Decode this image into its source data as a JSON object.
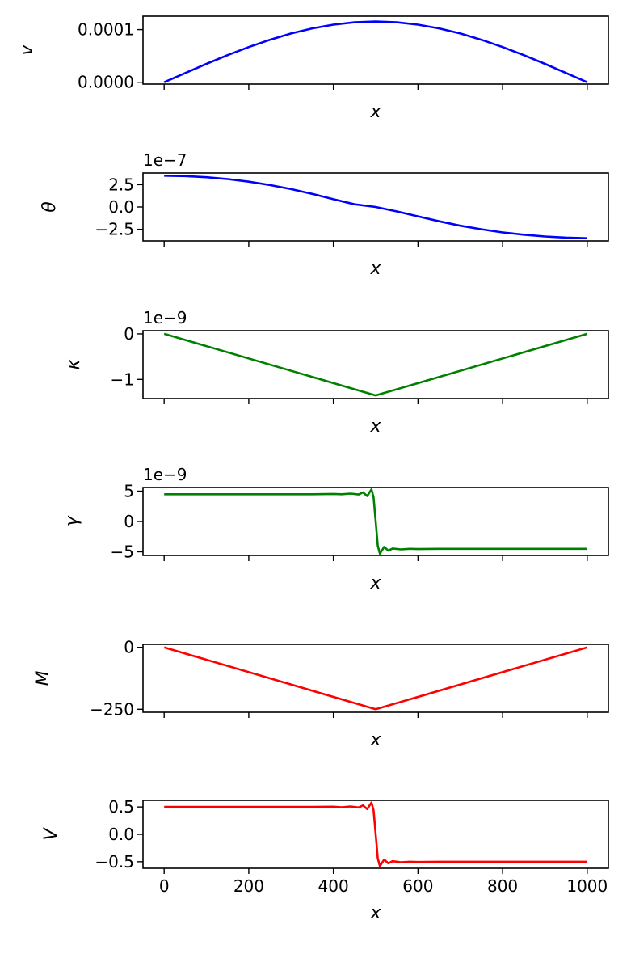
{
  "chart_data": [
    {
      "type": "line",
      "ylabel": "v",
      "xlabel": "x",
      "offset_text": "",
      "xlim": [
        -50,
        1050
      ],
      "ylim": [
        -3.5e-06,
        0.0001255
      ],
      "yticks": [
        0,
        0.0001
      ],
      "ytick_labels": [
        "0.0000",
        "0.0001"
      ],
      "xticks": [
        0,
        200,
        400,
        600,
        800,
        1000
      ],
      "xtick_labels": [],
      "color": "#0000ff",
      "x": [
        0,
        50,
        100,
        150,
        200,
        250,
        300,
        350,
        400,
        450,
        500,
        550,
        600,
        650,
        700,
        750,
        800,
        850,
        900,
        950,
        1000
      ],
      "y": [
        0,
        1.76e-05,
        3.49e-05,
        5.15e-05,
        6.69e-05,
        8.07e-05,
        9.26e-05,
        0.0001023,
        0.0001094,
        0.0001138,
        0.0001153,
        0.0001138,
        0.0001094,
        0.0001023,
        9.26e-05,
        8.07e-05,
        6.69e-05,
        5.15e-05,
        3.49e-05,
        1.76e-05,
        0
      ]
    },
    {
      "type": "line",
      "ylabel": "θ",
      "xlabel": "x",
      "offset_text": "1e−7",
      "xlim": [
        -50,
        1050
      ],
      "ylim": [
        -3.8,
        3.8
      ],
      "yticks": [
        2.5,
        0,
        -2.5
      ],
      "ytick_labels": [
        "2.5",
        "0.0",
        "−2.5"
      ],
      "xticks": [
        0,
        200,
        400,
        600,
        800,
        1000
      ],
      "xtick_labels": [],
      "color": "#0000ff",
      "x": [
        0,
        50,
        100,
        150,
        200,
        250,
        300,
        350,
        400,
        450,
        500,
        550,
        600,
        650,
        700,
        750,
        800,
        850,
        900,
        950,
        1000
      ],
      "y": [
        3.5,
        3.46,
        3.33,
        3.12,
        2.83,
        2.45,
        2.0,
        1.47,
        0.87,
        0.3,
        0.0,
        -0.5,
        -1.05,
        -1.6,
        -2.1,
        -2.5,
        -2.85,
        -3.1,
        -3.3,
        -3.43,
        -3.5
      ]
    },
    {
      "type": "line",
      "ylabel": "κ",
      "xlabel": "x",
      "offset_text": "1e−9",
      "xlim": [
        -50,
        1050
      ],
      "ylim": [
        -1.42,
        0.07
      ],
      "yticks": [
        0,
        -1
      ],
      "ytick_labels": [
        "0",
        "−1"
      ],
      "xticks": [
        0,
        200,
        400,
        600,
        800,
        1000
      ],
      "xtick_labels": [],
      "color": "#008000",
      "x": [
        0,
        500,
        1000
      ],
      "y": [
        0,
        -1.35,
        0
      ]
    },
    {
      "type": "line",
      "ylabel": "γ",
      "xlabel": "x",
      "offset_text": "1e−9",
      "xlim": [
        -50,
        1050
      ],
      "ylim": [
        -5.6,
        5.6
      ],
      "yticks": [
        5,
        0,
        -5
      ],
      "ytick_labels": [
        "5",
        "0",
        "−5"
      ],
      "xticks": [
        0,
        200,
        400,
        600,
        800,
        1000
      ],
      "xtick_labels": [],
      "color": "#008000",
      "x": [
        0,
        50,
        100,
        150,
        200,
        250,
        300,
        350,
        400,
        420,
        440,
        460,
        470,
        480,
        490,
        495,
        500,
        505,
        510,
        520,
        530,
        540,
        560,
        580,
        600,
        650,
        700,
        750,
        800,
        850,
        900,
        950,
        1000
      ],
      "y": [
        4.5,
        4.5,
        4.5,
        4.5,
        4.5,
        4.5,
        4.5,
        4.5,
        4.55,
        4.5,
        4.6,
        4.45,
        4.8,
        4.2,
        5.3,
        4.0,
        0,
        -4.0,
        -5.3,
        -4.2,
        -4.8,
        -4.45,
        -4.6,
        -4.5,
        -4.55,
        -4.5,
        -4.5,
        -4.5,
        -4.5,
        -4.5,
        -4.5,
        -4.5,
        -4.5
      ]
    },
    {
      "type": "line",
      "ylabel": "M",
      "xlabel": "x",
      "offset_text": "",
      "xlim": [
        -50,
        1050
      ],
      "ylim": [
        -262,
        12
      ],
      "yticks": [
        0,
        -250
      ],
      "ytick_labels": [
        "0",
        "−250"
      ],
      "xticks": [
        0,
        200,
        400,
        600,
        800,
        1000
      ],
      "xtick_labels": [],
      "color": "#ff0000",
      "x": [
        0,
        500,
        1000
      ],
      "y": [
        0,
        -250,
        0
      ]
    },
    {
      "type": "line",
      "ylabel": "V",
      "xlabel": "x",
      "offset_text": "",
      "xlim": [
        -50,
        1050
      ],
      "ylim": [
        -0.62,
        0.62
      ],
      "yticks": [
        0.5,
        0,
        -0.5
      ],
      "ytick_labels": [
        "0.5",
        "0.0",
        "−0.5"
      ],
      "xticks": [
        0,
        200,
        400,
        600,
        800,
        1000
      ],
      "xtick_labels": [
        "0",
        "200",
        "400",
        "600",
        "800",
        "1000"
      ],
      "color": "#ff0000",
      "x": [
        0,
        50,
        100,
        150,
        200,
        250,
        300,
        350,
        400,
        420,
        440,
        460,
        470,
        480,
        490,
        495,
        500,
        505,
        510,
        520,
        530,
        540,
        560,
        580,
        600,
        650,
        700,
        750,
        800,
        850,
        900,
        950,
        1000
      ],
      "y": [
        0.5,
        0.5,
        0.5,
        0.5,
        0.5,
        0.5,
        0.5,
        0.5,
        0.505,
        0.495,
        0.51,
        0.49,
        0.53,
        0.46,
        0.58,
        0.44,
        0,
        -0.44,
        -0.58,
        -0.46,
        -0.53,
        -0.49,
        -0.51,
        -0.5,
        -0.505,
        -0.5,
        -0.5,
        -0.5,
        -0.5,
        -0.5,
        -0.5,
        -0.5,
        -0.5
      ]
    }
  ]
}
